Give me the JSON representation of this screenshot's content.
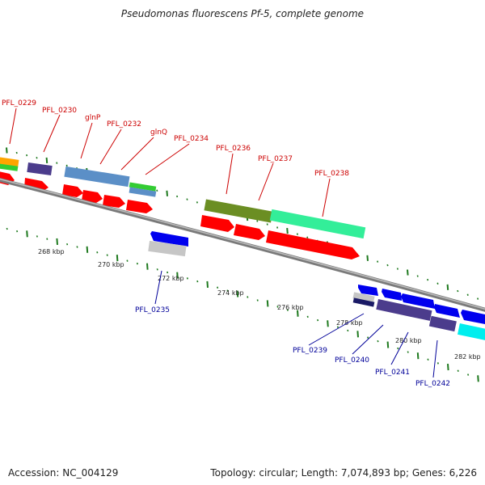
{
  "title": "Pseudomonas fluorescens Pf-5, complete genome",
  "footer": {
    "accession": "Accession: NC_004129",
    "summary": "Topology: circular; Length: 7,074,893 bp; Genes: 6,226"
  },
  "colors": {
    "label_top": "#cc0000",
    "label_bottom": "#000099",
    "tick": "#1f7a1f",
    "backbone": "#888888",
    "cds": "#ff0000",
    "blue_gene": "#0000ee"
  },
  "ruler": [
    {
      "label": "268 kbp"
    },
    {
      "label": "270 kbp"
    },
    {
      "label": "272 kbp"
    },
    {
      "label": "274 kbp"
    },
    {
      "label": "276 kbp"
    },
    {
      "label": "278 kbp"
    },
    {
      "label": "280 kbp"
    },
    {
      "label": "282 kbp"
    }
  ],
  "top_labels": [
    {
      "text": "PFL_0229"
    },
    {
      "text": "PFL_0230"
    },
    {
      "text": "glnP"
    },
    {
      "text": "PFL_0232"
    },
    {
      "text": "glnQ"
    },
    {
      "text": "PFL_0234"
    },
    {
      "text": "PFL_0236"
    },
    {
      "text": "PFL_0237"
    },
    {
      "text": "PFL_0238"
    }
  ],
  "bottom_labels": [
    {
      "text": "PFL_0235"
    },
    {
      "text": "PFL_0239"
    },
    {
      "text": "PFL_0240"
    },
    {
      "text": "PFL_0241"
    },
    {
      "text": "PFL_0242"
    }
  ]
}
